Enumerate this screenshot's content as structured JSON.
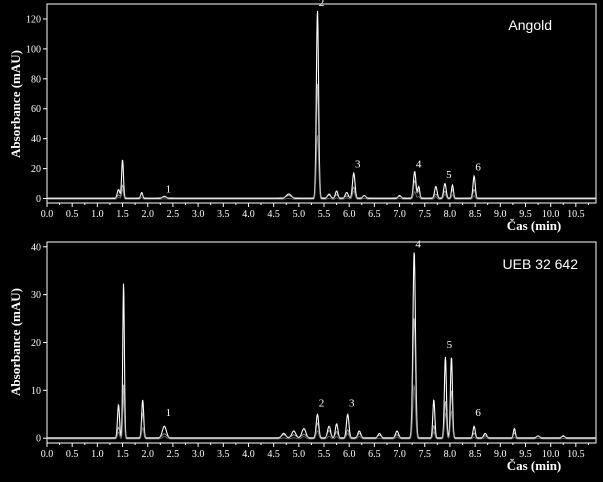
{
  "chart_data": [
    {
      "type": "line",
      "title": "Angold",
      "xlabel": "Čas (min)",
      "ylabel": "Absorbance (mAU)",
      "xlim": [
        0,
        10.9
      ],
      "ylim": [
        -3,
        130
      ],
      "x_ticks": [
        "0.0",
        "0.5",
        "1.0",
        "1.5",
        "2.0",
        "2.5",
        "3.0",
        "3.5",
        "4.0",
        "4.5",
        "5.0",
        "5.5",
        "6.0",
        "6.5",
        "7.0",
        "7.5",
        "8.0",
        "8.5",
        "9.0",
        "9.5",
        "10.0",
        "10.5"
      ],
      "y_ticks": [
        "0",
        "20",
        "40",
        "60",
        "80",
        "100",
        "120"
      ],
      "peak_labels": [
        {
          "label": "1",
          "x": 2.33,
          "y": 1.2
        },
        {
          "label": "2",
          "x": 5.37,
          "y": 126
        },
        {
          "label": "3",
          "x": 6.09,
          "y": 18
        },
        {
          "label": "4",
          "x": 7.3,
          "y": 18
        },
        {
          "label": "5",
          "x": 7.9,
          "y": 11
        },
        {
          "label": "6",
          "x": 8.48,
          "y": 16
        }
      ],
      "peaks": [
        {
          "x": 1.42,
          "h": 6,
          "w": 0.025
        },
        {
          "x": 1.5,
          "h": 26,
          "w": 0.018
        },
        {
          "x": 1.88,
          "h": 4,
          "w": 0.02
        },
        {
          "x": 2.33,
          "h": 1.5,
          "w": 0.04
        },
        {
          "x": 4.8,
          "h": 3,
          "w": 0.05
        },
        {
          "x": 5.37,
          "h": 126,
          "w": 0.022
        },
        {
          "x": 5.6,
          "h": 3,
          "w": 0.03
        },
        {
          "x": 5.75,
          "h": 5,
          "w": 0.025
        },
        {
          "x": 5.95,
          "h": 4,
          "w": 0.03
        },
        {
          "x": 6.09,
          "h": 17,
          "w": 0.025
        },
        {
          "x": 6.3,
          "h": 2,
          "w": 0.03
        },
        {
          "x": 7.0,
          "h": 2,
          "w": 0.03
        },
        {
          "x": 7.3,
          "h": 18,
          "w": 0.025
        },
        {
          "x": 7.38,
          "h": 8,
          "w": 0.02
        },
        {
          "x": 7.72,
          "h": 8,
          "w": 0.025
        },
        {
          "x": 7.9,
          "h": 10,
          "w": 0.025
        },
        {
          "x": 8.05,
          "h": 9,
          "w": 0.02
        },
        {
          "x": 8.48,
          "h": 15,
          "w": 0.022
        }
      ]
    },
    {
      "type": "line",
      "title": "UEB 32 642",
      "xlabel": "Čas (min)",
      "ylabel": "Absorbance (mAU)",
      "xlim": [
        0,
        10.9
      ],
      "ylim": [
        -1,
        41
      ],
      "x_ticks": [
        "0.0",
        "0.5",
        "1.0",
        "1.5",
        "2.0",
        "2.5",
        "3.0",
        "3.5",
        "4.0",
        "4.5",
        "5.0",
        "5.5",
        "6.0",
        "6.5",
        "7.0",
        "7.5",
        "8.0",
        "8.5",
        "9.0",
        "9.5",
        "10.0",
        "10.5"
      ],
      "y_ticks": [
        "0",
        "10",
        "20",
        "30",
        "40"
      ],
      "peak_labels": [
        {
          "label": "1",
          "x": 2.33,
          "y": 3.8
        },
        {
          "label": "2",
          "x": 5.37,
          "y": 5.8
        },
        {
          "label": "3",
          "x": 5.97,
          "y": 5.8
        },
        {
          "label": "4",
          "x": 7.29,
          "y": 39
        },
        {
          "label": "5",
          "x": 7.91,
          "y": 18
        },
        {
          "label": "6",
          "x": 8.48,
          "y": 3.8
        }
      ],
      "peaks": [
        {
          "x": 1.42,
          "h": 7,
          "w": 0.02
        },
        {
          "x": 1.52,
          "h": 32.5,
          "w": 0.016
        },
        {
          "x": 1.9,
          "h": 8,
          "w": 0.02
        },
        {
          "x": 2.33,
          "h": 2.5,
          "w": 0.04
        },
        {
          "x": 4.7,
          "h": 1,
          "w": 0.04
        },
        {
          "x": 4.9,
          "h": 1.5,
          "w": 0.04
        },
        {
          "x": 5.1,
          "h": 2,
          "w": 0.04
        },
        {
          "x": 5.37,
          "h": 5,
          "w": 0.025
        },
        {
          "x": 5.6,
          "h": 2.5,
          "w": 0.03
        },
        {
          "x": 5.75,
          "h": 3,
          "w": 0.025
        },
        {
          "x": 5.97,
          "h": 5,
          "w": 0.025
        },
        {
          "x": 6.2,
          "h": 1.5,
          "w": 0.03
        },
        {
          "x": 6.6,
          "h": 1,
          "w": 0.03
        },
        {
          "x": 6.95,
          "h": 1.5,
          "w": 0.03
        },
        {
          "x": 7.29,
          "h": 39,
          "w": 0.025
        },
        {
          "x": 7.68,
          "h": 8,
          "w": 0.02
        },
        {
          "x": 7.91,
          "h": 17,
          "w": 0.02
        },
        {
          "x": 8.03,
          "h": 17,
          "w": 0.02
        },
        {
          "x": 8.48,
          "h": 2.5,
          "w": 0.022
        },
        {
          "x": 8.7,
          "h": 1,
          "w": 0.03
        },
        {
          "x": 9.28,
          "h": 2,
          "w": 0.02
        },
        {
          "x": 9.75,
          "h": 0.5,
          "w": 0.03
        },
        {
          "x": 10.25,
          "h": 0.5,
          "w": 0.03
        }
      ]
    }
  ]
}
